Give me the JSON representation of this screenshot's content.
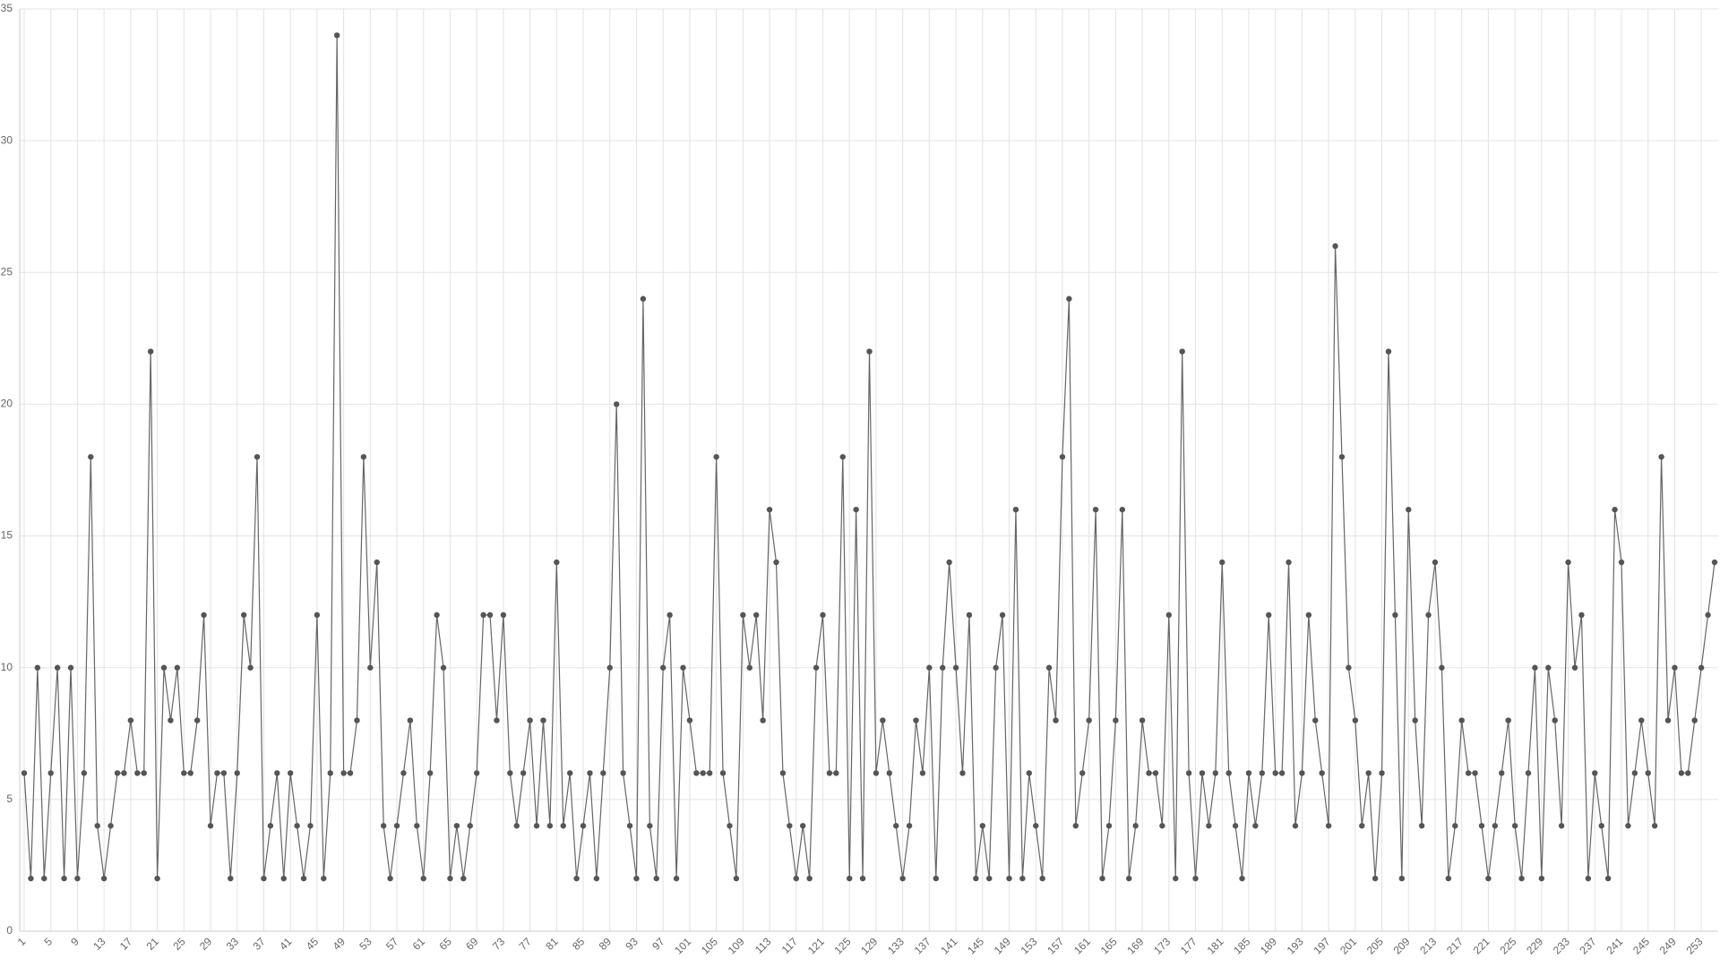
{
  "chart_data": {
    "type": "line",
    "categories": [
      "1",
      null,
      null,
      null,
      "5",
      null,
      null,
      null,
      "9",
      null,
      null,
      null,
      "13",
      null,
      null,
      null,
      "17",
      null,
      null,
      null,
      "21",
      null,
      null,
      null,
      "25",
      null,
      null,
      null,
      "29",
      null,
      null,
      null,
      "33",
      null,
      null,
      null,
      "37",
      null,
      null,
      null,
      "41",
      null,
      null,
      null,
      "45",
      null,
      null,
      null,
      "49",
      null,
      null,
      null,
      "53",
      null,
      null,
      null,
      "57",
      null,
      null,
      null,
      "61",
      null,
      null,
      null,
      "65",
      null,
      null,
      null,
      "69",
      null,
      null,
      null,
      "73",
      null,
      null,
      null,
      "77",
      null,
      null,
      null,
      "81",
      null,
      null,
      null,
      "85",
      null,
      null,
      null,
      "89",
      null,
      null,
      null,
      "93",
      null,
      null,
      null,
      "97",
      null,
      null,
      null,
      "101",
      null,
      null,
      null,
      "105",
      null,
      null,
      null,
      "109",
      null,
      null,
      null,
      "113",
      null,
      null,
      null,
      "117",
      null,
      null,
      null,
      "121",
      null,
      null,
      null,
      "125",
      null,
      null,
      null,
      "129",
      null,
      null,
      null,
      "133",
      null,
      null,
      null,
      "137",
      null,
      null,
      null,
      "141",
      null,
      null,
      null,
      "145",
      null,
      null,
      null,
      "149",
      null,
      null,
      null,
      "153",
      null,
      null,
      null,
      "157",
      null,
      null,
      null,
      "161",
      null,
      null,
      null,
      "165",
      null,
      null,
      null,
      "169",
      null,
      null,
      null,
      "173",
      null,
      null,
      null,
      "177",
      null,
      null,
      null,
      "181",
      null,
      null,
      null,
      "185",
      null,
      null,
      null,
      "189",
      null,
      null,
      null,
      "193",
      null,
      null,
      null,
      "197",
      null,
      null,
      null,
      "201",
      null,
      null,
      null,
      "205",
      null,
      null,
      null,
      "209",
      null,
      null,
      null,
      "213",
      null,
      null,
      null,
      "217",
      null,
      null,
      null,
      "221",
      null,
      null,
      null,
      "225",
      null,
      null,
      null,
      "229",
      null,
      null,
      null,
      "233",
      null,
      null,
      null,
      "237",
      null,
      null,
      null,
      "241",
      null,
      null,
      null,
      "245",
      null,
      null,
      null,
      "249",
      null,
      null,
      null,
      "253",
      null,
      null
    ],
    "values": [
      6,
      2,
      10,
      2,
      6,
      10,
      2,
      10,
      2,
      6,
      18,
      4,
      2,
      4,
      6,
      6,
      8,
      6,
      6,
      22,
      2,
      10,
      8,
      10,
      6,
      6,
      8,
      12,
      4,
      6,
      6,
      2,
      6,
      12,
      10,
      18,
      2,
      4,
      6,
      2,
      6,
      4,
      2,
      4,
      12,
      2,
      6,
      34,
      6,
      6,
      8,
      18,
      10,
      14,
      4,
      2,
      4,
      6,
      8,
      4,
      2,
      6,
      12,
      10,
      2,
      4,
      2,
      4,
      6,
      12,
      12,
      8,
      12,
      6,
      4,
      6,
      8,
      4,
      8,
      4,
      14,
      4,
      6,
      2,
      4,
      6,
      2,
      6,
      10,
      20,
      6,
      4,
      2,
      24,
      4,
      2,
      10,
      12,
      2,
      10,
      8,
      6,
      6,
      6,
      18,
      6,
      4,
      2,
      12,
      10,
      12,
      8,
      16,
      14,
      6,
      4,
      2,
      4,
      2,
      10,
      12,
      6,
      6,
      18,
      2,
      16,
      2,
      22,
      6,
      8,
      6,
      4,
      2,
      4,
      8,
      6,
      10,
      2,
      10,
      14,
      10,
      6,
      12,
      2,
      4,
      2,
      10,
      12,
      2,
      16,
      2,
      6,
      4,
      2,
      10,
      8,
      18,
      24,
      4,
      6,
      8,
      16,
      2,
      4,
      8,
      16,
      2,
      4,
      8,
      6,
      6,
      4,
      12,
      2,
      22,
      6,
      2,
      6,
      4,
      6,
      14,
      6,
      4,
      2,
      6,
      4,
      6,
      12,
      6,
      6,
      14,
      4,
      6,
      12,
      8,
      6,
      4,
      26,
      18,
      10,
      8,
      4,
      6,
      2,
      6,
      22,
      12,
      2,
      16,
      8,
      4,
      12,
      14,
      10,
      2,
      4,
      8,
      6,
      6,
      4,
      2,
      4,
      6,
      8,
      4,
      2,
      6,
      10,
      2,
      10,
      8,
      4,
      14,
      10,
      12,
      2,
      6,
      4,
      2,
      16,
      14,
      4,
      6,
      8,
      6,
      4,
      18,
      8,
      10,
      6,
      6,
      8,
      10,
      12,
      14
    ],
    "color": "#666666",
    "ylim": [
      0,
      35
    ],
    "yticks": [
      0,
      5,
      10,
      15,
      20,
      25,
      30,
      35
    ],
    "grid": true
  }
}
